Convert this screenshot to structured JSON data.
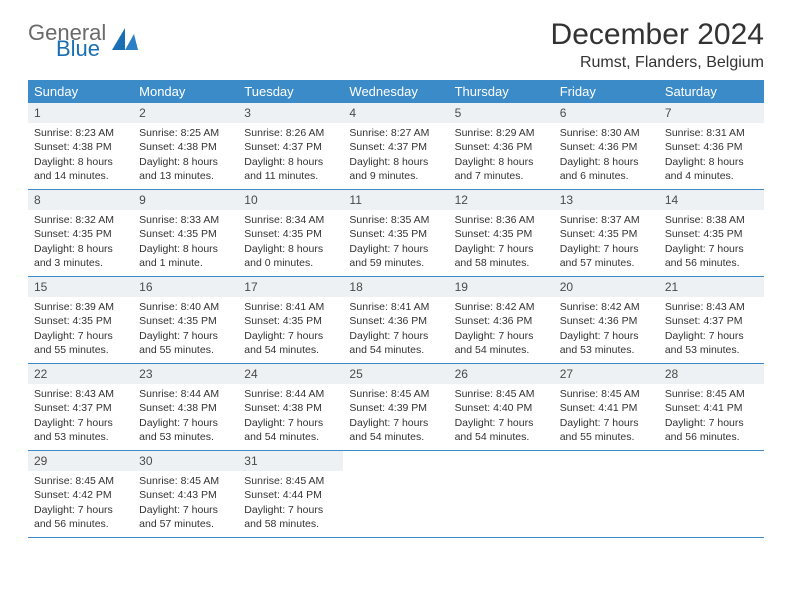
{
  "brand": {
    "word1": "General",
    "word2": "Blue"
  },
  "title": "December 2024",
  "location": "Rumst, Flanders, Belgium",
  "colors": {
    "header_bg": "#3b8bc9",
    "header_fg": "#ffffff",
    "daynum_bg": "#eef1f3",
    "rule": "#3b8bc9",
    "text": "#333333",
    "brand_gray": "#6a6a6a",
    "brand_blue": "#1a6fb4"
  },
  "day_headers": [
    "Sunday",
    "Monday",
    "Tuesday",
    "Wednesday",
    "Thursday",
    "Friday",
    "Saturday"
  ],
  "weeks": [
    [
      {
        "n": "1",
        "sr": "Sunrise: 8:23 AM",
        "ss": "Sunset: 4:38 PM",
        "dl": "Daylight: 8 hours and 14 minutes."
      },
      {
        "n": "2",
        "sr": "Sunrise: 8:25 AM",
        "ss": "Sunset: 4:38 PM",
        "dl": "Daylight: 8 hours and 13 minutes."
      },
      {
        "n": "3",
        "sr": "Sunrise: 8:26 AM",
        "ss": "Sunset: 4:37 PM",
        "dl": "Daylight: 8 hours and 11 minutes."
      },
      {
        "n": "4",
        "sr": "Sunrise: 8:27 AM",
        "ss": "Sunset: 4:37 PM",
        "dl": "Daylight: 8 hours and 9 minutes."
      },
      {
        "n": "5",
        "sr": "Sunrise: 8:29 AM",
        "ss": "Sunset: 4:36 PM",
        "dl": "Daylight: 8 hours and 7 minutes."
      },
      {
        "n": "6",
        "sr": "Sunrise: 8:30 AM",
        "ss": "Sunset: 4:36 PM",
        "dl": "Daylight: 8 hours and 6 minutes."
      },
      {
        "n": "7",
        "sr": "Sunrise: 8:31 AM",
        "ss": "Sunset: 4:36 PM",
        "dl": "Daylight: 8 hours and 4 minutes."
      }
    ],
    [
      {
        "n": "8",
        "sr": "Sunrise: 8:32 AM",
        "ss": "Sunset: 4:35 PM",
        "dl": "Daylight: 8 hours and 3 minutes."
      },
      {
        "n": "9",
        "sr": "Sunrise: 8:33 AM",
        "ss": "Sunset: 4:35 PM",
        "dl": "Daylight: 8 hours and 1 minute."
      },
      {
        "n": "10",
        "sr": "Sunrise: 8:34 AM",
        "ss": "Sunset: 4:35 PM",
        "dl": "Daylight: 8 hours and 0 minutes."
      },
      {
        "n": "11",
        "sr": "Sunrise: 8:35 AM",
        "ss": "Sunset: 4:35 PM",
        "dl": "Daylight: 7 hours and 59 minutes."
      },
      {
        "n": "12",
        "sr": "Sunrise: 8:36 AM",
        "ss": "Sunset: 4:35 PM",
        "dl": "Daylight: 7 hours and 58 minutes."
      },
      {
        "n": "13",
        "sr": "Sunrise: 8:37 AM",
        "ss": "Sunset: 4:35 PM",
        "dl": "Daylight: 7 hours and 57 minutes."
      },
      {
        "n": "14",
        "sr": "Sunrise: 8:38 AM",
        "ss": "Sunset: 4:35 PM",
        "dl": "Daylight: 7 hours and 56 minutes."
      }
    ],
    [
      {
        "n": "15",
        "sr": "Sunrise: 8:39 AM",
        "ss": "Sunset: 4:35 PM",
        "dl": "Daylight: 7 hours and 55 minutes."
      },
      {
        "n": "16",
        "sr": "Sunrise: 8:40 AM",
        "ss": "Sunset: 4:35 PM",
        "dl": "Daylight: 7 hours and 55 minutes."
      },
      {
        "n": "17",
        "sr": "Sunrise: 8:41 AM",
        "ss": "Sunset: 4:35 PM",
        "dl": "Daylight: 7 hours and 54 minutes."
      },
      {
        "n": "18",
        "sr": "Sunrise: 8:41 AM",
        "ss": "Sunset: 4:36 PM",
        "dl": "Daylight: 7 hours and 54 minutes."
      },
      {
        "n": "19",
        "sr": "Sunrise: 8:42 AM",
        "ss": "Sunset: 4:36 PM",
        "dl": "Daylight: 7 hours and 54 minutes."
      },
      {
        "n": "20",
        "sr": "Sunrise: 8:42 AM",
        "ss": "Sunset: 4:36 PM",
        "dl": "Daylight: 7 hours and 53 minutes."
      },
      {
        "n": "21",
        "sr": "Sunrise: 8:43 AM",
        "ss": "Sunset: 4:37 PM",
        "dl": "Daylight: 7 hours and 53 minutes."
      }
    ],
    [
      {
        "n": "22",
        "sr": "Sunrise: 8:43 AM",
        "ss": "Sunset: 4:37 PM",
        "dl": "Daylight: 7 hours and 53 minutes."
      },
      {
        "n": "23",
        "sr": "Sunrise: 8:44 AM",
        "ss": "Sunset: 4:38 PM",
        "dl": "Daylight: 7 hours and 53 minutes."
      },
      {
        "n": "24",
        "sr": "Sunrise: 8:44 AM",
        "ss": "Sunset: 4:38 PM",
        "dl": "Daylight: 7 hours and 54 minutes."
      },
      {
        "n": "25",
        "sr": "Sunrise: 8:45 AM",
        "ss": "Sunset: 4:39 PM",
        "dl": "Daylight: 7 hours and 54 minutes."
      },
      {
        "n": "26",
        "sr": "Sunrise: 8:45 AM",
        "ss": "Sunset: 4:40 PM",
        "dl": "Daylight: 7 hours and 54 minutes."
      },
      {
        "n": "27",
        "sr": "Sunrise: 8:45 AM",
        "ss": "Sunset: 4:41 PM",
        "dl": "Daylight: 7 hours and 55 minutes."
      },
      {
        "n": "28",
        "sr": "Sunrise: 8:45 AM",
        "ss": "Sunset: 4:41 PM",
        "dl": "Daylight: 7 hours and 56 minutes."
      }
    ],
    [
      {
        "n": "29",
        "sr": "Sunrise: 8:45 AM",
        "ss": "Sunset: 4:42 PM",
        "dl": "Daylight: 7 hours and 56 minutes."
      },
      {
        "n": "30",
        "sr": "Sunrise: 8:45 AM",
        "ss": "Sunset: 4:43 PM",
        "dl": "Daylight: 7 hours and 57 minutes."
      },
      {
        "n": "31",
        "sr": "Sunrise: 8:45 AM",
        "ss": "Sunset: 4:44 PM",
        "dl": "Daylight: 7 hours and 58 minutes."
      },
      null,
      null,
      null,
      null
    ]
  ]
}
